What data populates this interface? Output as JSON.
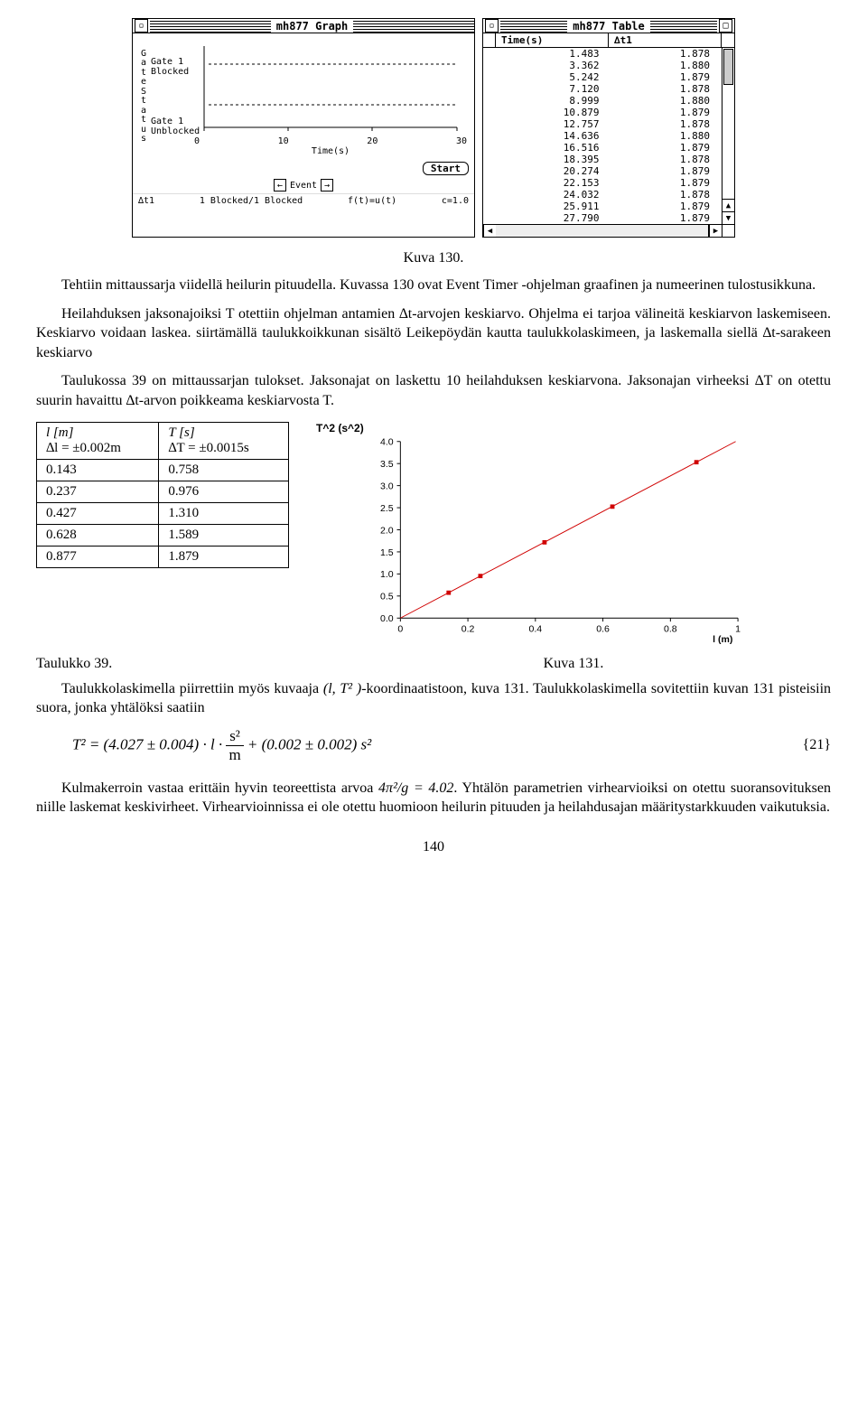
{
  "graph_window": {
    "title": "mh877 Graph",
    "y_axis_letters": [
      "G",
      "a",
      "t",
      "e",
      " ",
      "S",
      "t",
      "a",
      "t",
      "u",
      "s"
    ],
    "y_labels": [
      "Gate 1 Blocked",
      "Gate 1 Unblocked"
    ],
    "x_ticks": [
      "0",
      "10",
      "20",
      "30"
    ],
    "x_label": "Time(s)",
    "start_button": "Start",
    "event_label": "Event",
    "footer_left": "∆t1",
    "footer_mid": "1 Blocked/1 Blocked",
    "footer_ft": "f(t)=u(t)",
    "footer_c": "c=1.0"
  },
  "table_window": {
    "title": "mh877 Table",
    "col1": "Time(s)",
    "col2": "∆t1",
    "rows": [
      [
        "1.483",
        "1.878"
      ],
      [
        "3.362",
        "1.880"
      ],
      [
        "5.242",
        "1.879"
      ],
      [
        "7.120",
        "1.878"
      ],
      [
        "8.999",
        "1.880"
      ],
      [
        "10.879",
        "1.879"
      ],
      [
        "12.757",
        "1.878"
      ],
      [
        "14.636",
        "1.880"
      ],
      [
        "16.516",
        "1.879"
      ],
      [
        "18.395",
        "1.878"
      ],
      [
        "20.274",
        "1.879"
      ],
      [
        "22.153",
        "1.879"
      ],
      [
        "24.032",
        "1.878"
      ],
      [
        "25.911",
        "1.879"
      ],
      [
        "27.790",
        "1.879"
      ]
    ]
  },
  "caption_top": "Kuva 130.",
  "para1": "Tehtiin mittaussarja viidellä heilurin pituudella. Kuvassa 130 ovat Event Timer -ohjelman graafinen ja numeerinen tulostusikkuna.",
  "para2": "Heilahduksen jaksonajoiksi T otettiin ohjelman antamien ∆t-arvojen keskiarvo. Ohjelma ei tarjoa välineitä keskiarvon laskemiseen. Keskiarvo voidaan laskea. siirtämällä taulukkoikkunan sisältö Leikepöydän kautta taulukkolaskimeen, ja laskemalla siellä ∆t-sarakeen keskiarvo",
  "para3": "Taulukossa 39 on mittaussarjan tulokset. Jaksonajat on laskettu 10 heilahduksen keskiarvona. Jaksonajan virheeksi ∆T on otettu suurin havaittu ∆t-arvon poikkeama keskiarvosta T.",
  "data_table": {
    "header_l_top": "l [m]",
    "header_l_bot": "∆l = ±0.002m",
    "header_t_top": "T [s]",
    "header_t_bot": "∆T = ±0.0015s",
    "rows": [
      [
        "0.143",
        "0.758"
      ],
      [
        "0.237",
        "0.976"
      ],
      [
        "0.427",
        "1.310"
      ],
      [
        "0.628",
        "1.589"
      ],
      [
        "0.877",
        "1.879"
      ]
    ]
  },
  "scatter_chart": {
    "title": "T^2 (s^2)",
    "x_label": "l (m)",
    "y_ticks": [
      "0.0",
      "0.5",
      "1.0",
      "1.5",
      "2.0",
      "2.5",
      "3.0",
      "3.5",
      "4.0"
    ],
    "x_ticks": [
      "0",
      "0.2",
      "0.4",
      "0.6",
      "0.8",
      "1"
    ],
    "ylim": [
      0,
      4.0
    ],
    "xlim": [
      0,
      1.0
    ],
    "point_color": "#d00000",
    "line_color": "#d00000",
    "axis_color": "#000000",
    "grid_color": "#cccccc",
    "marker": "square",
    "marker_size": 5,
    "line_width": 1,
    "points": [
      {
        "x": 0.143,
        "y": 0.575
      },
      {
        "x": 0.237,
        "y": 0.953
      },
      {
        "x": 0.427,
        "y": 1.716
      },
      {
        "x": 0.628,
        "y": 2.525
      },
      {
        "x": 0.877,
        "y": 3.531
      }
    ],
    "fit_line": {
      "x1": 0.0,
      "y1": 0.0,
      "x2": 1.0,
      "y2": 4.027
    }
  },
  "caption_table": "Taulukko 39.",
  "caption_chart": "Kuva 131.",
  "para4_a": "Taulukkolaskimella piirrettiin myös kuvaaja ",
  "para4_coords": "(l, T² )",
  "para4_b": "-koordinaatistoon, kuva 131. Taulukkolaskimella sovitettiin kuvan 131 pisteisiin suora, jonka yhtälöksi saatiin",
  "equation": {
    "lhs": "T²",
    "rhs_a": "(4.027 ± 0.004) · l ·",
    "frac_num": "s²",
    "frac_den": "m",
    "rhs_b": "+ (0.002 ± 0.002) s²",
    "number": "{21}"
  },
  "para5_a": "Kulmakerroin vastaa erittäin hyvin teoreettista arvoa ",
  "para5_expr": "4π²/g = 4.02",
  "para5_b": ". Yhtälön parametrien virhearvioiksi on otettu suoransovituksen niille laskemat keskivirheet. Virhearvioinnissa ei ole otettu huomioon heilurin pituuden ja heilahdusajan määritystarkkuuden vaikutuksia.",
  "page_number": "140"
}
